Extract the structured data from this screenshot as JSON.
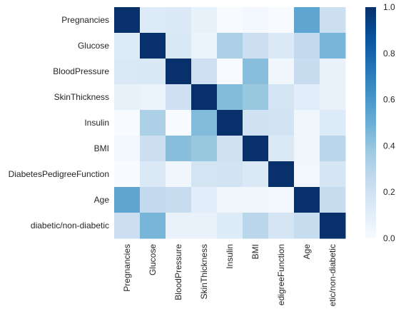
{
  "chart_data": {
    "type": "heatmap",
    "title": "",
    "xlabel": "",
    "ylabel": "",
    "row_labels": [
      "Pregnancies",
      "Glucose",
      "BloodPressure",
      "SkinThickness",
      "Insulin",
      "BMI",
      "DiabetesPedigreeFunction",
      "Age",
      "diabetic/non-diabetic"
    ],
    "col_labels": [
      "Pregnancies",
      "Glucose",
      "BloodPressure",
      "SkinThickness",
      "Insulin",
      "BMI",
      "edigreeFunction",
      "Age",
      "etic/non-diabetic"
    ],
    "values": [
      [
        1.0,
        0.13,
        0.14,
        0.08,
        0.0,
        0.02,
        0.0,
        0.54,
        0.22
      ],
      [
        0.13,
        1.0,
        0.15,
        0.06,
        0.33,
        0.22,
        0.14,
        0.26,
        0.47
      ],
      [
        0.14,
        0.15,
        1.0,
        0.21,
        0.0,
        0.43,
        0.04,
        0.24,
        0.07
      ],
      [
        0.08,
        0.06,
        0.21,
        1.0,
        0.44,
        0.39,
        0.18,
        0.11,
        0.07
      ],
      [
        0.0,
        0.33,
        0.0,
        0.44,
        1.0,
        0.2,
        0.19,
        0.04,
        0.13
      ],
      [
        0.02,
        0.22,
        0.43,
        0.39,
        0.2,
        1.0,
        0.14,
        0.04,
        0.29
      ],
      [
        0.0,
        0.14,
        0.04,
        0.18,
        0.19,
        0.14,
        1.0,
        0.03,
        0.17
      ],
      [
        0.54,
        0.26,
        0.24,
        0.11,
        0.04,
        0.04,
        0.03,
        1.0,
        0.24
      ],
      [
        0.22,
        0.47,
        0.07,
        0.07,
        0.13,
        0.29,
        0.17,
        0.24,
        1.0
      ]
    ],
    "colorbar": {
      "ticks": [
        "0.0",
        "0.2",
        "0.4",
        "0.6",
        "0.8",
        "1.0"
      ],
      "min": 0,
      "max": 1
    },
    "colormap": "Blues",
    "colors": [
      "#f7fbff",
      "#deebf7",
      "#c6dbef",
      "#9ecae1",
      "#6baed6",
      "#4292c6",
      "#2171b5",
      "#08519c",
      "#08306b"
    ],
    "grid": false
  }
}
